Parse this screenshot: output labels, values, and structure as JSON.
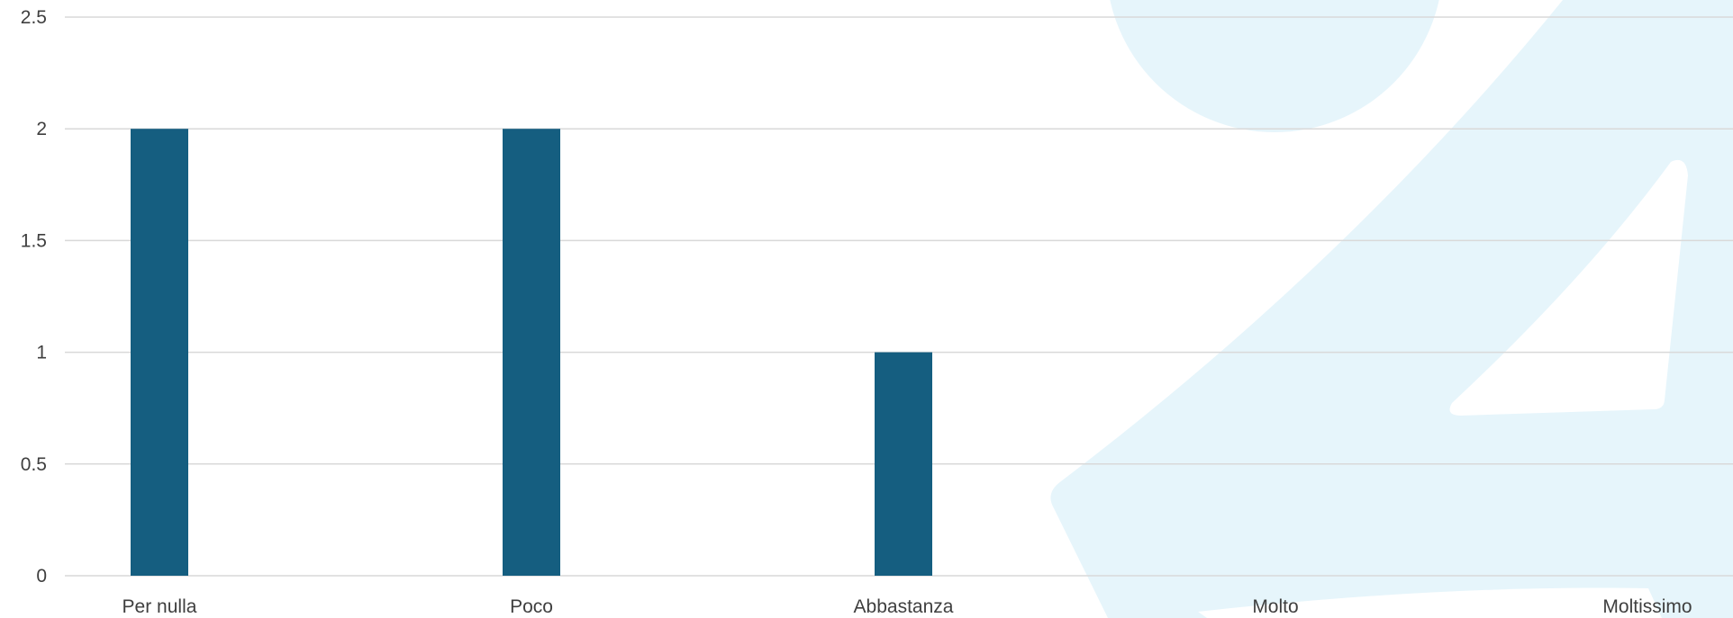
{
  "colors": {
    "bar": "#155e80",
    "watermark": "#e6f5fb",
    "grid": "#d9d9d9",
    "text": "#3f3f3f",
    "background": "#ffffff"
  },
  "chart_data": {
    "type": "bar",
    "categories": [
      "Per nulla",
      "Poco",
      "Abbastanza",
      "Molto",
      "Moltissimo"
    ],
    "values": [
      2,
      2,
      1,
      0,
      0
    ],
    "title": "",
    "xlabel": "",
    "ylabel": "",
    "ylim": [
      0,
      2.5
    ],
    "yticks": [
      "0",
      "0.5",
      "1",
      "1.5",
      "2",
      "2.5"
    ],
    "grid": true,
    "legend": "none"
  }
}
